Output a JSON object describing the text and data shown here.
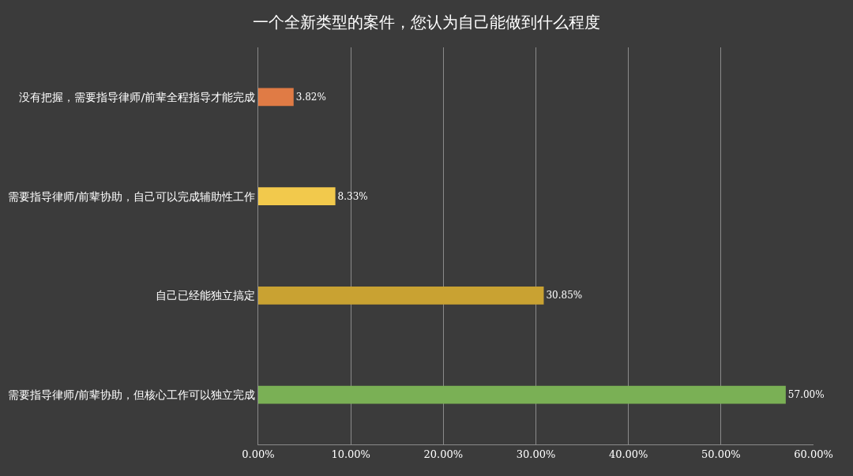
{
  "chart_data": {
    "type": "bar",
    "orientation": "horizontal",
    "title": "一个全新类型的案件，您认为自己能做到什么程度",
    "categories": [
      "没有把握，需要指导律师/前辈全程指导才能完成",
      "需要指导律师/前辈协助，自己可以完成辅助性工作",
      "自己已经能独立搞定",
      "需要指导律师/前辈协助，但核心工作可以独立完成"
    ],
    "values": [
      3.82,
      8.33,
      30.85,
      57.0
    ],
    "colors": [
      "#e07b45",
      "#f2c94c",
      "#c9a232",
      "#7ab055"
    ],
    "value_labels": [
      "3.82%",
      "8.33%",
      "30.85%",
      "57.00%"
    ],
    "xlim": [
      0,
      60
    ],
    "xticks": [
      {
        "value": 0,
        "label": "0.00%"
      },
      {
        "value": 10,
        "label": "10.00%"
      },
      {
        "value": 20,
        "label": "20.00%"
      },
      {
        "value": 30,
        "label": "30.00%"
      },
      {
        "value": 40,
        "label": "40.00%"
      },
      {
        "value": 50,
        "label": "50.00%"
      },
      {
        "value": 60,
        "label": "60.00%"
      }
    ],
    "grid": "x",
    "legend": false
  }
}
